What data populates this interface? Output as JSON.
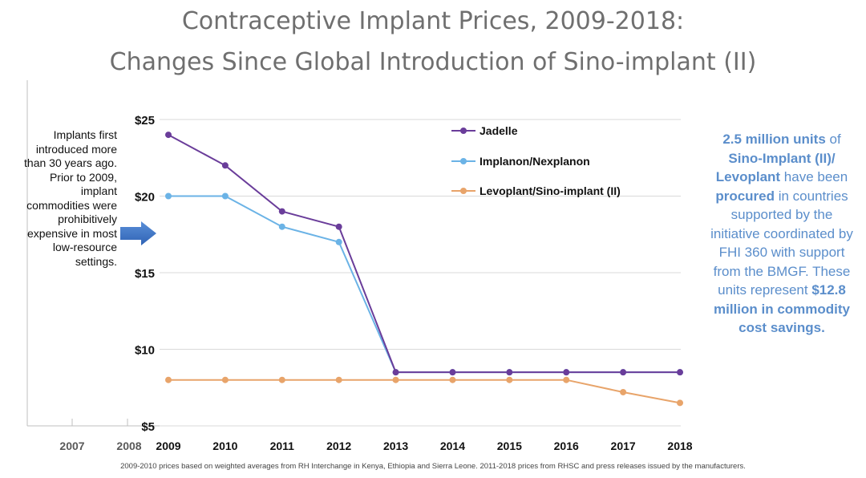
{
  "title_line1": "Contraceptive Implant Prices, 2009-2018:",
  "title_line2": "Changes Since Global Introduction of Sino-implant (II)",
  "left_note": "Implants first introduced more than 30 years ago. Prior to 2009, implant commodities were prohibitively expensive in most low-resource settings.",
  "right_note": {
    "p1": "2.5 million units",
    "p2": " of ",
    "p3": "Sino-Implant (II)/ Levoplant",
    "p4": " have been ",
    "p5": "procured",
    "p6": " in countries supported by the initiative coordinated by FHI 360 with support from the BMGF. These units represent ",
    "p7": "$12.8 million in commodity cost savings."
  },
  "footnote": "2009-2010 prices based on weighted averages from RH Interchange in Kenya, Ethiopia and Sierra Leone. 2011-2018 prices from RHSC and press releases issued by the manufacturers.",
  "chart_data": {
    "type": "line",
    "title": "Contraceptive Implant Prices, 2009-2018: Changes Since Global Introduction of Sino-implant (II)",
    "x": [
      2009,
      2010,
      2011,
      2012,
      2013,
      2014,
      2015,
      2016,
      2017,
      2018
    ],
    "x_extra_ticks": [
      "2007",
      "2008"
    ],
    "ylim": [
      5,
      25
    ],
    "yticks": [
      {
        "value": 5,
        "label": "$5"
      },
      {
        "value": 10,
        "label": "$10"
      },
      {
        "value": 15,
        "label": "$15"
      },
      {
        "value": 20,
        "label": "$20"
      },
      {
        "value": 25,
        "label": "$25"
      }
    ],
    "grid": true,
    "legend_position": "top-center",
    "series": [
      {
        "name": "Jadelle",
        "color": "#6a3d9a",
        "values": [
          24,
          22,
          19,
          18,
          8.5,
          8.5,
          8.5,
          8.5,
          8.5,
          8.5
        ]
      },
      {
        "name": "Implanon/Nexplanon",
        "color": "#6bb3e6",
        "values": [
          20,
          20,
          18,
          17,
          8.5,
          8.5,
          8.5,
          8.5,
          8.5,
          8.5
        ]
      },
      {
        "name": "Levoplant/Sino-implant (II)",
        "color": "#e8a46a",
        "values": [
          8,
          8,
          8,
          8,
          8,
          8,
          8,
          8,
          7.2,
          6.5
        ]
      }
    ]
  }
}
